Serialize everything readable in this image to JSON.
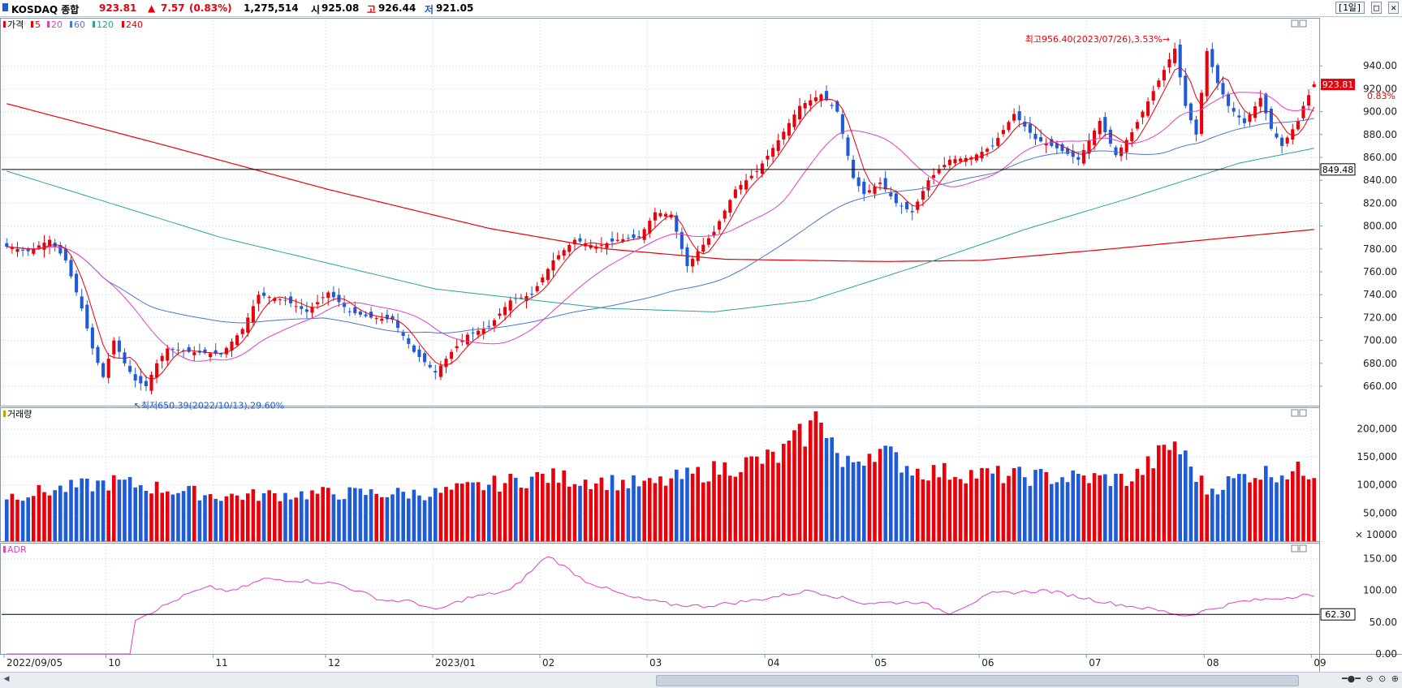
{
  "header": {
    "name": "KOSDAQ 종합",
    "price": "923.81",
    "change_arrow": "▲",
    "change": "7.57",
    "change_pct": "(0.83%)",
    "volume": "1,275,514",
    "open_label": "시",
    "open": "925.08",
    "high_label": "고",
    "high": "926.44",
    "low_label": "저",
    "low": "921.05",
    "period": "[1일]",
    "up_color": "#e8000b",
    "down_color": "#1f5bd6"
  },
  "legend": {
    "price_label": "가격",
    "ma": [
      {
        "label": "5",
        "color": "#e8000b"
      },
      {
        "label": "20",
        "color": "#e040c8"
      },
      {
        "label": "60",
        "color": "#4a78c8"
      },
      {
        "label": "120",
        "color": "#2aa39a"
      },
      {
        "label": "240",
        "color": "#e8000b"
      }
    ],
    "volume_label": "거래량",
    "adr_label": "ADR"
  },
  "chart_data": [
    {
      "type": "candlestick",
      "title": "KOSDAQ 종합",
      "y_ticks": [
        "660.00",
        "680.00",
        "700.00",
        "720.00",
        "740.00",
        "760.00",
        "780.00",
        "800.00",
        "820.00",
        "840.00",
        "860.00",
        "880.00",
        "900.00",
        "920.00",
        "940.00"
      ],
      "ylim": [
        643,
        982
      ],
      "x_labels": [
        "2022/09/05",
        "10",
        "11",
        "12",
        "2023/01",
        "02",
        "03",
        "04",
        "05",
        "06",
        "07",
        "08",
        "09"
      ],
      "x_label_index": [
        0,
        19,
        39,
        60,
        80,
        100,
        120,
        142,
        162,
        182,
        202,
        224,
        244
      ],
      "n_bars": 245,
      "waypoints": [
        [
          0,
          782
        ],
        [
          4,
          778
        ],
        [
          8,
          788
        ],
        [
          11,
          770
        ],
        [
          14,
          728
        ],
        [
          16,
          693
        ],
        [
          18,
          668
        ],
        [
          20,
          700
        ],
        [
          22,
          680
        ],
        [
          24,
          665
        ],
        [
          26,
          660
        ],
        [
          28,
          680
        ],
        [
          30,
          693
        ],
        [
          34,
          690
        ],
        [
          40,
          688
        ],
        [
          44,
          710
        ],
        [
          47,
          740
        ],
        [
          52,
          735
        ],
        [
          56,
          725
        ],
        [
          60,
          742
        ],
        [
          64,
          725
        ],
        [
          68,
          720
        ],
        [
          72,
          718
        ],
        [
          76,
          690
        ],
        [
          80,
          672
        ],
        [
          83,
          690
        ],
        [
          86,
          705
        ],
        [
          90,
          712
        ],
        [
          94,
          735
        ],
        [
          98,
          740
        ],
        [
          102,
          770
        ],
        [
          106,
          788
        ],
        [
          110,
          782
        ],
        [
          114,
          788
        ],
        [
          118,
          790
        ],
        [
          121,
          812
        ],
        [
          124,
          810
        ],
        [
          127,
          765
        ],
        [
          129,
          778
        ],
        [
          132,
          795
        ],
        [
          136,
          832
        ],
        [
          140,
          848
        ],
        [
          144,
          875
        ],
        [
          148,
          905
        ],
        [
          152,
          915
        ],
        [
          155,
          900
        ],
        [
          158,
          842
        ],
        [
          160,
          828
        ],
        [
          163,
          838
        ],
        [
          166,
          820
        ],
        [
          169,
          812
        ],
        [
          172,
          840
        ],
        [
          176,
          858
        ],
        [
          180,
          860
        ],
        [
          184,
          870
        ],
        [
          188,
          898
        ],
        [
          192,
          876
        ],
        [
          196,
          868
        ],
        [
          200,
          858
        ],
        [
          204,
          892
        ],
        [
          207,
          862
        ],
        [
          210,
          882
        ],
        [
          214,
          918
        ],
        [
          218,
          955
        ],
        [
          220,
          905
        ],
        [
          222,
          880
        ],
        [
          224,
          953
        ],
        [
          226,
          925
        ],
        [
          228,
          905
        ],
        [
          231,
          890
        ],
        [
          234,
          912
        ],
        [
          236,
          885
        ],
        [
          238,
          870
        ],
        [
          241,
          892
        ],
        [
          242,
          905
        ],
        [
          244,
          923.81
        ]
      ],
      "annotations": [
        {
          "text": "최고956.40(2023/07/26),3.53%",
          "value": 956.4,
          "index": 218
        },
        {
          "text": "최저650.39(2022/10/13),29.60%",
          "value": 650.39,
          "index": 24
        }
      ],
      "last_price": "923.81",
      "last_change": "0.83%",
      "horizontal_line": "849.48",
      "ma240_waypoints": [
        [
          0,
          907
        ],
        [
          30,
          870
        ],
        [
          60,
          832
        ],
        [
          90,
          798
        ],
        [
          112,
          780
        ],
        [
          134,
          771
        ],
        [
          164,
          769
        ],
        [
          182,
          770
        ],
        [
          206,
          780
        ],
        [
          244,
          797
        ]
      ],
      "ma120_waypoints": [
        [
          0,
          848
        ],
        [
          40,
          790
        ],
        [
          80,
          745
        ],
        [
          112,
          728
        ],
        [
          132,
          725
        ],
        [
          150,
          735
        ],
        [
          170,
          765
        ],
        [
          190,
          797
        ],
        [
          210,
          825
        ],
        [
          230,
          855
        ],
        [
          244,
          868
        ]
      ]
    },
    {
      "type": "bar",
      "title": "거래량",
      "y_ticks": [
        "50,000",
        "100,000",
        "150,000",
        "200,000"
      ],
      "unit": "× 10000",
      "ylim": [
        0,
        235000
      ],
      "waypoints": [
        [
          0,
          80000
        ],
        [
          20,
          105000
        ],
        [
          40,
          80000
        ],
        [
          60,
          85000
        ],
        [
          80,
          85000
        ],
        [
          100,
          115000
        ],
        [
          120,
          100000
        ],
        [
          134,
          130000
        ],
        [
          144,
          150000
        ],
        [
          150,
          200000
        ],
        [
          152,
          230000
        ],
        [
          156,
          130000
        ],
        [
          162,
          165000
        ],
        [
          170,
          125000
        ],
        [
          190,
          115000
        ],
        [
          210,
          110000
        ],
        [
          218,
          175000
        ],
        [
          224,
          90000
        ],
        [
          232,
          120000
        ],
        [
          244,
          125000
        ]
      ]
    },
    {
      "type": "line",
      "title": "ADR",
      "y_ticks": [
        "0.00",
        "50.00",
        "100.00",
        "150.00"
      ],
      "ylim": [
        0,
        175
      ],
      "horizontal_line": "62.30",
      "waypoints": [
        [
          0,
          0
        ],
        [
          23,
          0
        ],
        [
          24,
          55
        ],
        [
          28,
          70
        ],
        [
          34,
          95
        ],
        [
          38,
          105
        ],
        [
          42,
          98
        ],
        [
          48,
          118
        ],
        [
          56,
          115
        ],
        [
          62,
          110
        ],
        [
          70,
          85
        ],
        [
          76,
          82
        ],
        [
          80,
          68
        ],
        [
          86,
          88
        ],
        [
          94,
          100
        ],
        [
          101,
          155
        ],
        [
          108,
          115
        ],
        [
          116,
          90
        ],
        [
          124,
          78
        ],
        [
          130,
          75
        ],
        [
          140,
          85
        ],
        [
          150,
          100
        ],
        [
          160,
          80
        ],
        [
          170,
          82
        ],
        [
          176,
          65
        ],
        [
          184,
          95
        ],
        [
          194,
          100
        ],
        [
          206,
          80
        ],
        [
          214,
          70
        ],
        [
          220,
          60
        ],
        [
          230,
          82
        ],
        [
          240,
          90
        ],
        [
          242,
          95
        ],
        [
          244,
          88
        ]
      ]
    }
  ]
}
